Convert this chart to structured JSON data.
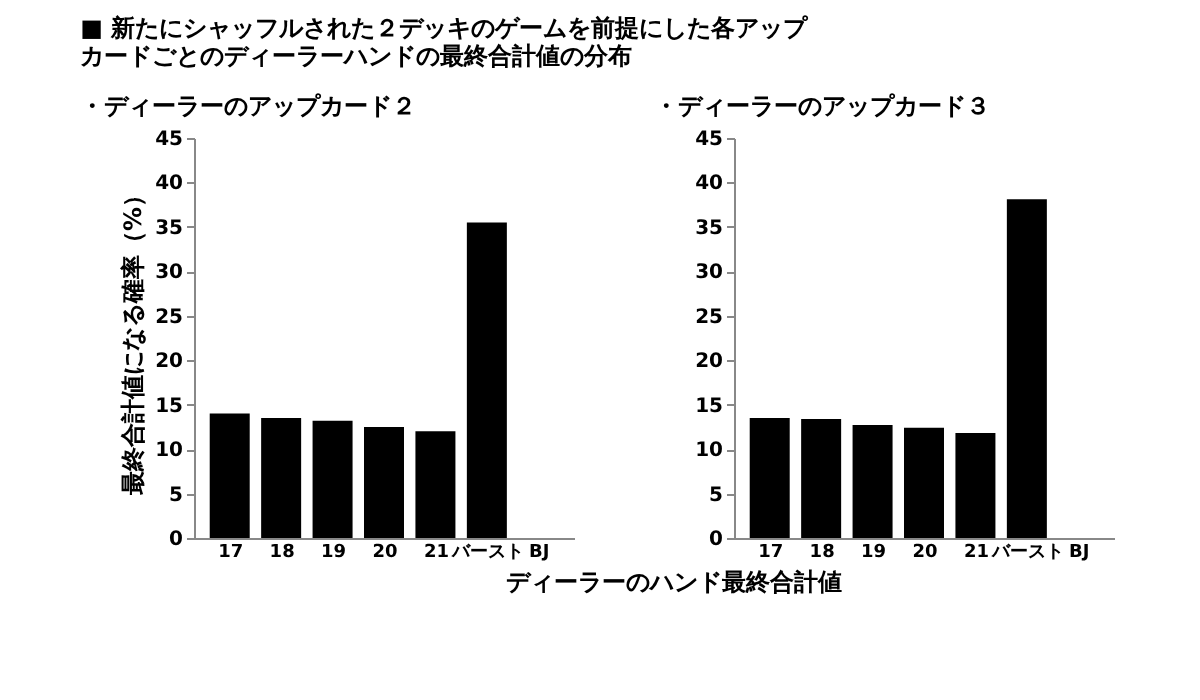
{
  "chart_data": [
    {
      "type": "bar",
      "title": "■ 新たにシャッフルされた２デッキのゲームを前提にした各アップカードごとのディーラーハンドの最終合計値の分布",
      "subtitle": "・ディーラーのアップカード２",
      "xlabel": "ディーラーのハンド最終合計値",
      "ylabel": "最終合計値になる確率（%）",
      "categories": [
        "17",
        "18",
        "19",
        "20",
        "21",
        "バースト",
        "BJ"
      ],
      "series": [
        {
          "color": "#000000",
          "values": [
            14.0,
            13.5,
            13.2,
            12.5,
            12.0,
            35.5,
            0
          ]
        }
      ],
      "ylim": [
        0,
        45
      ],
      "yticks": [
        0,
        5,
        10,
        15,
        20,
        25,
        30,
        35,
        40,
        45
      ],
      "grid": false
    },
    {
      "type": "bar",
      "subtitle": "・ディーラーのアップカード３",
      "categories": [
        "17",
        "18",
        "19",
        "20",
        "21",
        "バースト",
        "BJ"
      ],
      "series": [
        {
          "color": "#000000",
          "values": [
            13.5,
            13.4,
            12.7,
            12.4,
            11.8,
            38.1,
            0
          ]
        }
      ],
      "ylim": [
        0,
        45
      ],
      "yticks": [
        0,
        5,
        10,
        15,
        20,
        25,
        30,
        35,
        40,
        45
      ],
      "grid": false
    }
  ]
}
